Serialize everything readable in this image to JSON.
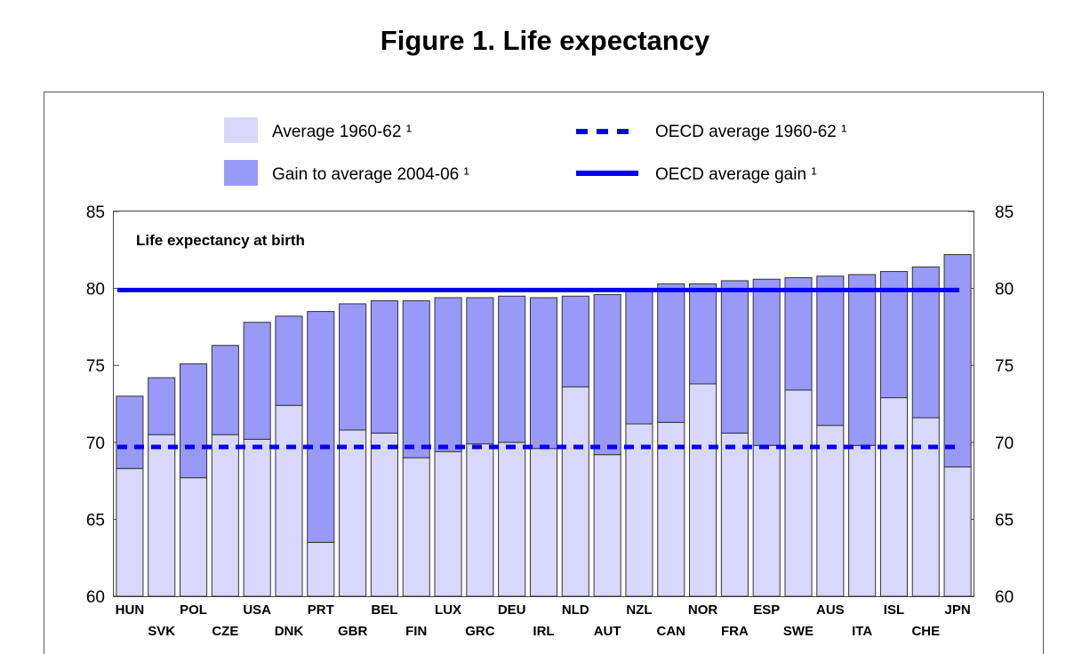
{
  "figure_title": "Figure 1. Life expectancy",
  "legend": {
    "avg_1960": "Average 1960-62 ¹",
    "gain_2004": "Gain to average 2004-06 ¹",
    "oecd_avg_1960": "OECD average 1960-62 ¹",
    "oecd_avg_gain": "OECD average gain ¹"
  },
  "colors": {
    "base": "#d8d8fc",
    "gain": "#9999f8",
    "line": "#0000ee",
    "bar_edge": "#333333"
  },
  "chart_data": {
    "type": "bar",
    "subtitle": "Life expectancy at birth",
    "ylim": [
      60,
      85
    ],
    "yticks": [
      60,
      65,
      70,
      75,
      80,
      85
    ],
    "bold_categories": [
      "USA"
    ],
    "categories": [
      "HUN",
      "SVK",
      "POL",
      "CZE",
      "USA",
      "DNK",
      "PRT",
      "GBR",
      "BEL",
      "FIN",
      "LUX",
      "GRC",
      "DEU",
      "IRL",
      "NLD",
      "AUT",
      "NZL",
      "CAN",
      "NOR",
      "FRA",
      "ESP",
      "SWE",
      "AUS",
      "ITA",
      "ISL",
      "CHE",
      "JPN"
    ],
    "series": [
      {
        "name": "Average 1960-62 ¹",
        "values": [
          68.3,
          70.5,
          67.7,
          70.5,
          70.2,
          72.4,
          63.5,
          70.8,
          70.6,
          69.0,
          69.4,
          69.9,
          70.0,
          69.6,
          73.6,
          69.2,
          71.2,
          71.3,
          73.8,
          70.6,
          69.8,
          73.4,
          71.1,
          69.8,
          72.9,
          71.6,
          68.4
        ]
      },
      {
        "name": "Gain to average 2004-06 ¹",
        "values": [
          4.7,
          3.7,
          7.4,
          5.8,
          7.6,
          5.8,
          15.0,
          8.2,
          8.6,
          10.2,
          10.0,
          9.5,
          9.5,
          9.8,
          5.9,
          10.4,
          8.8,
          9.0,
          6.5,
          9.9,
          10.8,
          7.3,
          9.7,
          11.1,
          8.2,
          9.8,
          13.8
        ]
      }
    ],
    "reference_lines": [
      {
        "name": "OECD average 1960-62 ¹",
        "value": 69.7,
        "style": "dashed"
      },
      {
        "name": "OECD average gain ¹",
        "value": 79.9,
        "style": "solid"
      }
    ],
    "grid": false,
    "legend_position": "top"
  }
}
